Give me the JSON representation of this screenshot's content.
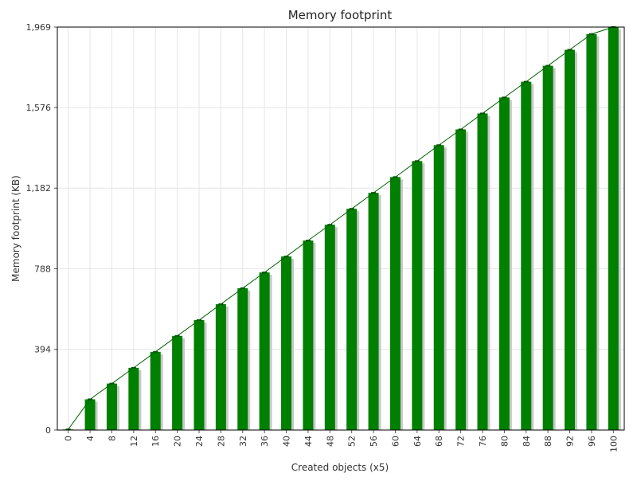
{
  "chart_data": {
    "type": "bar",
    "title": "Memory footprint",
    "xlabel": "Created objects (x5)",
    "ylabel": "Memory footprint (KB)",
    "categories": [
      "0",
      "4",
      "8",
      "12",
      "16",
      "20",
      "24",
      "28",
      "32",
      "36",
      "40",
      "44",
      "48",
      "52",
      "56",
      "60",
      "64",
      "68",
      "72",
      "76",
      "80",
      "84",
      "88",
      "92",
      "96",
      "100"
    ],
    "values": [
      3,
      150,
      227,
      304,
      382,
      460,
      537,
      615,
      693,
      770,
      848,
      926,
      1003,
      1081,
      1159,
      1236,
      1314,
      1392,
      1469,
      1547,
      1625,
      1702,
      1780,
      1858,
      1935,
      1969
    ],
    "yticks": [
      0,
      394,
      788,
      1182,
      1576,
      1969
    ],
    "ytick_labels": [
      "0",
      "394",
      "788",
      "1,182",
      "1,576",
      "1,969"
    ],
    "ylim": [
      0,
      1969
    ],
    "grid": true,
    "overlay_line": true,
    "colors": {
      "bar": "#008000",
      "bar_shadow": "#c8c8c8",
      "line": "#006400",
      "grid": "#e6e6e6",
      "frame": "#000000"
    }
  }
}
